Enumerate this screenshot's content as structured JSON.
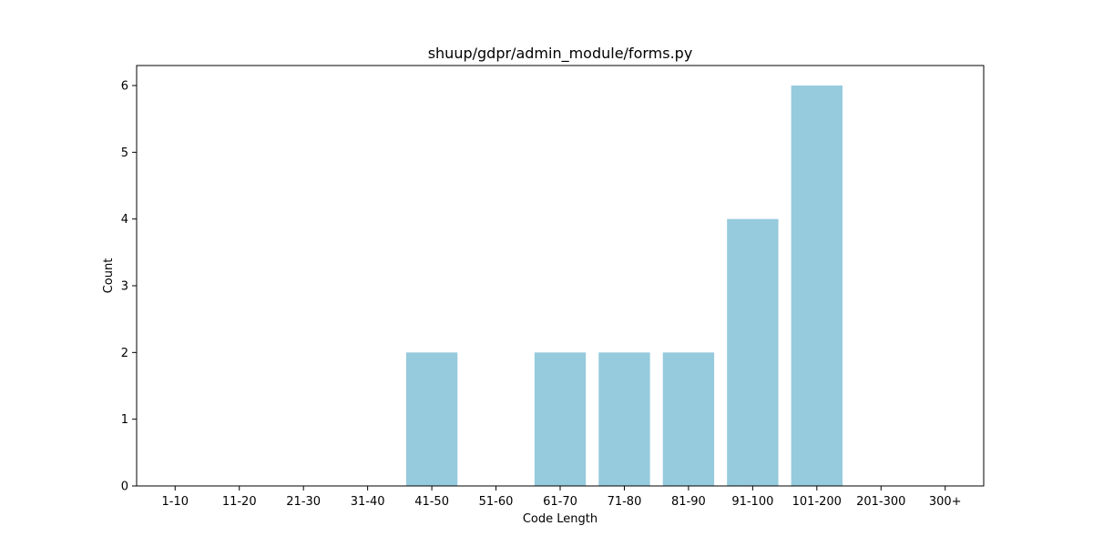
{
  "chart_data": {
    "type": "bar",
    "title": "shuup/gdpr/admin_module/forms.py",
    "xlabel": "Code Length",
    "ylabel": "Count",
    "categories": [
      "1-10",
      "11-20",
      "21-30",
      "31-40",
      "41-50",
      "51-60",
      "61-70",
      "71-80",
      "81-90",
      "91-100",
      "101-200",
      "201-300",
      "300+"
    ],
    "values": [
      0,
      0,
      0,
      0,
      2,
      0,
      2,
      2,
      2,
      4,
      6,
      0,
      0
    ],
    "ylim": [
      0,
      6.3
    ],
    "yticks": [
      0,
      1,
      2,
      3,
      4,
      5,
      6
    ],
    "bar_color": "#96cadd",
    "grid": false,
    "legend": "none"
  }
}
